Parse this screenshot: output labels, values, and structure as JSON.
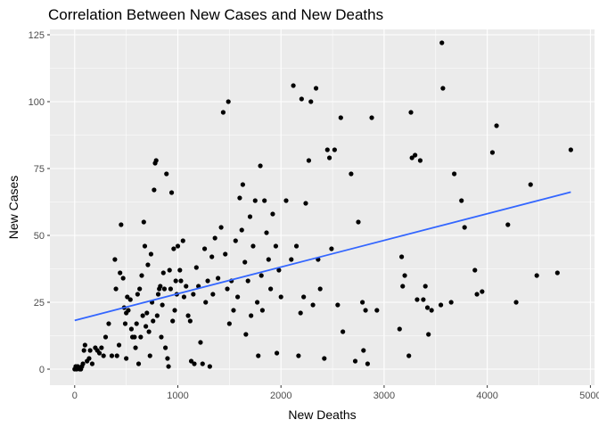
{
  "chart_data": {
    "type": "scatter",
    "title": "Correlation Between New Cases and New Deaths",
    "xlabel": "New Deaths",
    "ylabel": "New Cases",
    "xlim": [
      -240,
      5040
    ],
    "ylim": [
      -6,
      127
    ],
    "x_ticks": [
      0,
      1000,
      2000,
      3000,
      4000,
      5000
    ],
    "y_ticks": [
      0,
      25,
      50,
      75,
      100,
      125
    ],
    "x_tick_labels": [
      "0",
      "1000",
      "2000",
      "3000",
      "4000",
      "5000"
    ],
    "y_tick_labels": [
      "0",
      "25",
      "50",
      "75",
      "100",
      "125"
    ],
    "grid": true,
    "panel_background": "#ebebeb",
    "grid_color": "#ffffff",
    "point_color": "#000000",
    "trend_color": "#3366ff",
    "trend_line": {
      "x": [
        0,
        4810
      ],
      "y": [
        18.2,
        66.2
      ]
    },
    "points": [
      [
        0,
        0
      ],
      [
        10,
        1
      ],
      [
        20,
        0
      ],
      [
        30,
        1
      ],
      [
        50,
        0
      ],
      [
        60,
        0
      ],
      [
        70,
        1
      ],
      [
        80,
        2
      ],
      [
        90,
        7
      ],
      [
        100,
        9
      ],
      [
        120,
        3
      ],
      [
        140,
        4
      ],
      [
        150,
        7
      ],
      [
        170,
        2
      ],
      [
        200,
        8
      ],
      [
        220,
        7
      ],
      [
        240,
        6
      ],
      [
        260,
        8
      ],
      [
        280,
        5
      ],
      [
        300,
        12
      ],
      [
        330,
        17
      ],
      [
        360,
        5
      ],
      [
        390,
        41
      ],
      [
        400,
        30
      ],
      [
        410,
        5
      ],
      [
        430,
        9
      ],
      [
        440,
        36
      ],
      [
        450,
        54
      ],
      [
        470,
        34
      ],
      [
        480,
        23
      ],
      [
        490,
        17
      ],
      [
        500,
        21
      ],
      [
        500,
        4
      ],
      [
        510,
        27
      ],
      [
        520,
        22
      ],
      [
        540,
        26
      ],
      [
        550,
        15
      ],
      [
        560,
        12
      ],
      [
        580,
        12
      ],
      [
        590,
        8
      ],
      [
        600,
        17
      ],
      [
        610,
        28
      ],
      [
        620,
        2
      ],
      [
        630,
        30
      ],
      [
        640,
        12
      ],
      [
        650,
        35
      ],
      [
        660,
        20
      ],
      [
        670,
        55
      ],
      [
        680,
        46
      ],
      [
        690,
        16
      ],
      [
        700,
        21
      ],
      [
        710,
        39
      ],
      [
        720,
        14
      ],
      [
        730,
        5
      ],
      [
        740,
        43
      ],
      [
        750,
        25
      ],
      [
        760,
        18
      ],
      [
        770,
        67
      ],
      [
        780,
        77
      ],
      [
        790,
        78
      ],
      [
        800,
        20
      ],
      [
        810,
        28
      ],
      [
        820,
        30
      ],
      [
        830,
        31
      ],
      [
        840,
        12
      ],
      [
        850,
        24
      ],
      [
        860,
        36
      ],
      [
        870,
        30
      ],
      [
        880,
        8
      ],
      [
        890,
        73
      ],
      [
        900,
        4
      ],
      [
        910,
        1
      ],
      [
        920,
        37
      ],
      [
        930,
        30
      ],
      [
        940,
        66
      ],
      [
        950,
        18
      ],
      [
        960,
        45
      ],
      [
        970,
        22
      ],
      [
        980,
        33
      ],
      [
        990,
        28
      ],
      [
        1000,
        46
      ],
      [
        1020,
        37
      ],
      [
        1030,
        33
      ],
      [
        1050,
        48
      ],
      [
        1060,
        27
      ],
      [
        1080,
        31
      ],
      [
        1100,
        20
      ],
      [
        1120,
        18
      ],
      [
        1130,
        3
      ],
      [
        1150,
        28
      ],
      [
        1160,
        2
      ],
      [
        1180,
        38
      ],
      [
        1200,
        31
      ],
      [
        1220,
        10
      ],
      [
        1240,
        2
      ],
      [
        1260,
        45
      ],
      [
        1270,
        25
      ],
      [
        1290,
        33
      ],
      [
        1310,
        1
      ],
      [
        1330,
        42
      ],
      [
        1340,
        28
      ],
      [
        1360,
        49
      ],
      [
        1390,
        34
      ],
      [
        1420,
        53
      ],
      [
        1440,
        96
      ],
      [
        1460,
        43
      ],
      [
        1480,
        30
      ],
      [
        1490,
        100
      ],
      [
        1500,
        17
      ],
      [
        1520,
        33
      ],
      [
        1540,
        22
      ],
      [
        1560,
        48
      ],
      [
        1580,
        27
      ],
      [
        1600,
        64
      ],
      [
        1620,
        52
      ],
      [
        1630,
        69
      ],
      [
        1650,
        40
      ],
      [
        1660,
        13
      ],
      [
        1680,
        33
      ],
      [
        1700,
        57
      ],
      [
        1710,
        20
      ],
      [
        1730,
        46
      ],
      [
        1750,
        63
      ],
      [
        1770,
        25
      ],
      [
        1780,
        5
      ],
      [
        1800,
        76
      ],
      [
        1810,
        35
      ],
      [
        1820,
        22
      ],
      [
        1840,
        63
      ],
      [
        1860,
        51
      ],
      [
        1880,
        41
      ],
      [
        1900,
        30
      ],
      [
        1920,
        58
      ],
      [
        1950,
        46
      ],
      [
        1960,
        6
      ],
      [
        1980,
        37
      ],
      [
        2000,
        27
      ],
      [
        2050,
        63
      ],
      [
        2100,
        41
      ],
      [
        2120,
        106
      ],
      [
        2150,
        46
      ],
      [
        2170,
        5
      ],
      [
        2190,
        21
      ],
      [
        2200,
        101
      ],
      [
        2220,
        27
      ],
      [
        2240,
        62
      ],
      [
        2270,
        78
      ],
      [
        2290,
        100
      ],
      [
        2310,
        24
      ],
      [
        2340,
        105
      ],
      [
        2360,
        41
      ],
      [
        2380,
        30
      ],
      [
        2420,
        4
      ],
      [
        2450,
        82
      ],
      [
        2470,
        79
      ],
      [
        2490,
        45
      ],
      [
        2520,
        82
      ],
      [
        2550,
        24
      ],
      [
        2580,
        94
      ],
      [
        2600,
        14
      ],
      [
        2680,
        73
      ],
      [
        2720,
        3
      ],
      [
        2750,
        55
      ],
      [
        2790,
        25
      ],
      [
        2800,
        7
      ],
      [
        2820,
        22
      ],
      [
        2840,
        2
      ],
      [
        2880,
        94
      ],
      [
        2930,
        22
      ],
      [
        3150,
        15
      ],
      [
        3170,
        42
      ],
      [
        3180,
        31
      ],
      [
        3200,
        35
      ],
      [
        3240,
        5
      ],
      [
        3260,
        96
      ],
      [
        3270,
        79
      ],
      [
        3300,
        80
      ],
      [
        3320,
        26
      ],
      [
        3350,
        78
      ],
      [
        3380,
        26
      ],
      [
        3400,
        31
      ],
      [
        3420,
        23
      ],
      [
        3430,
        13
      ],
      [
        3460,
        22
      ],
      [
        3550,
        24
      ],
      [
        3560,
        122
      ],
      [
        3570,
        105
      ],
      [
        3650,
        25
      ],
      [
        3680,
        73
      ],
      [
        3750,
        63
      ],
      [
        3780,
        53
      ],
      [
        3880,
        37
      ],
      [
        3900,
        28
      ],
      [
        3950,
        29
      ],
      [
        4050,
        81
      ],
      [
        4090,
        91
      ],
      [
        4200,
        54
      ],
      [
        4280,
        25
      ],
      [
        4420,
        69
      ],
      [
        4480,
        35
      ],
      [
        4680,
        36
      ],
      [
        4810,
        82
      ]
    ]
  }
}
